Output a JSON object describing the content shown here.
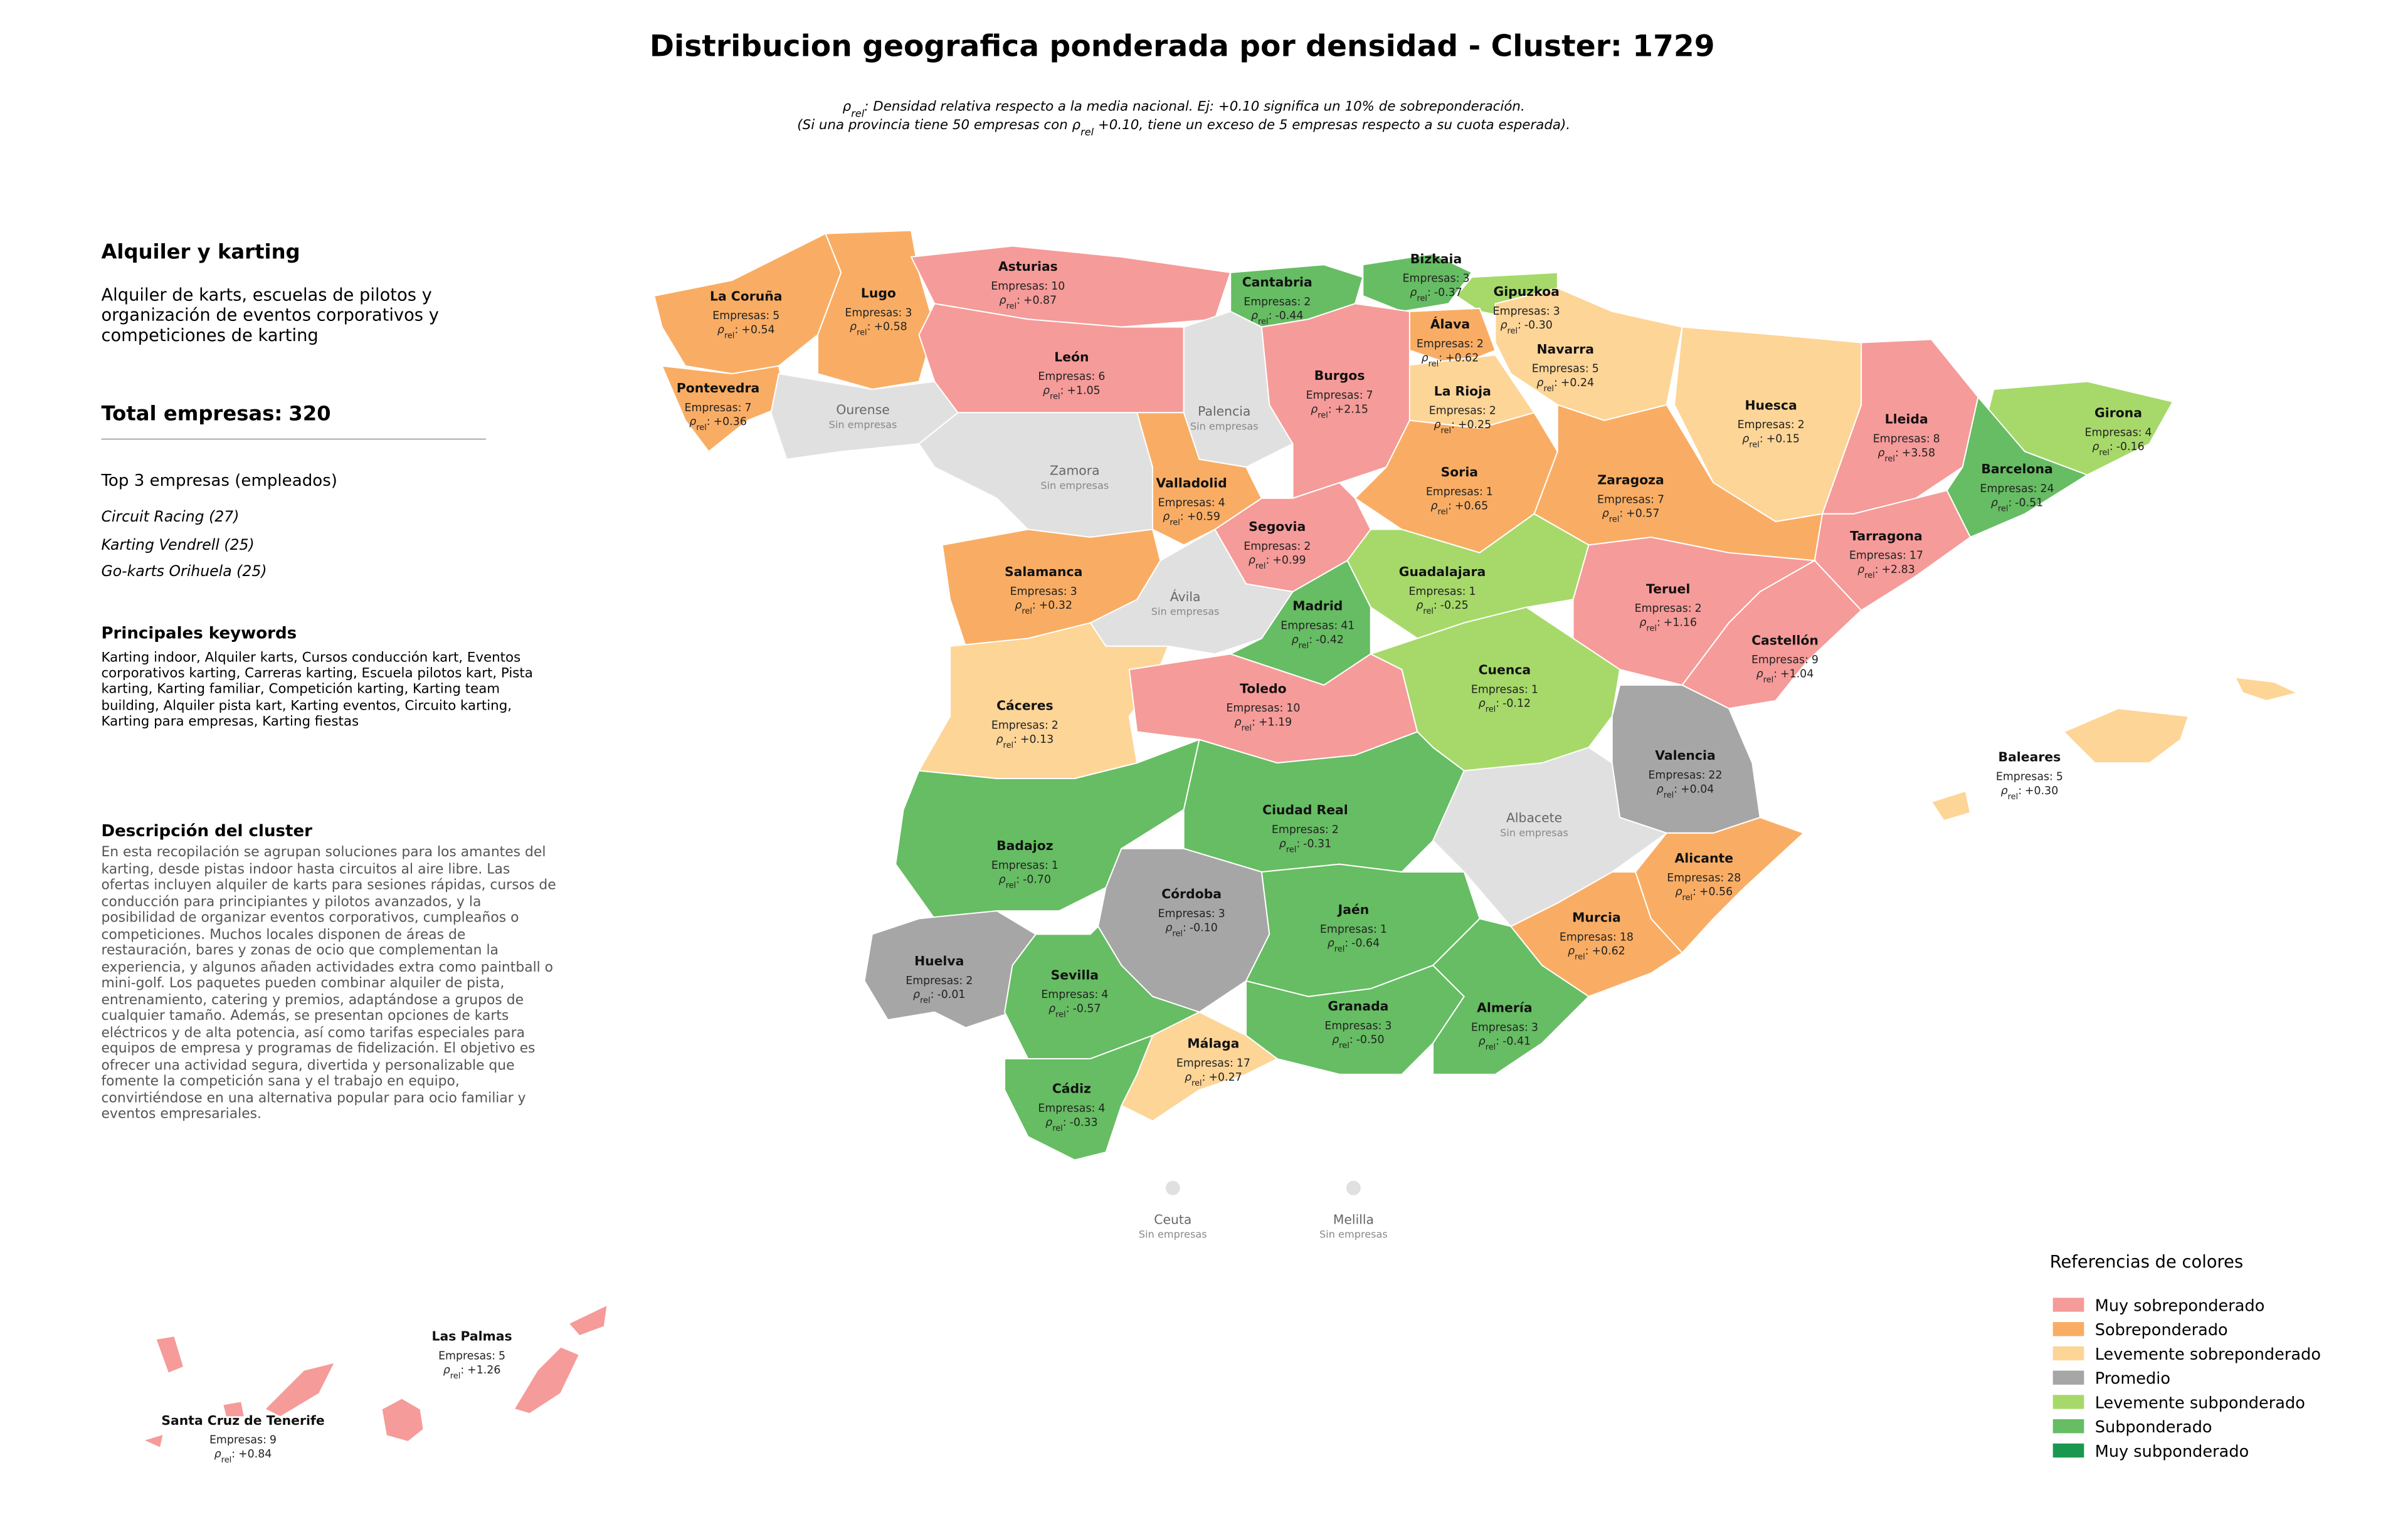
{
  "title": "Distribucion geografica ponderada por densidad - Cluster: 1729",
  "subtitle_lines": [
    [
      {
        "text": "ρ"
      },
      {
        "text": "rel",
        "subscript": true
      },
      {
        "text": ": Densidad relativa respecto a la media nacional. Ej: +0.10 significa un 10% de sobreponderación."
      }
    ],
    [
      {
        "text": "(Si una provincia tiene 50 empresas con "
      },
      {
        "text": "ρ"
      },
      {
        "text": "rel",
        "subscript": true
      },
      {
        "text": " +0.10, tiene un exceso de 5 empresas respecto a su cuota esperada)."
      }
    ]
  ],
  "sidebar": {
    "cluster_name": "Alquiler y karting",
    "cluster_description": "Alquiler de karts, escuelas de pilotos y organización de eventos corporativos y competiciones de karting",
    "total_label": "Total empresas:",
    "total": 320,
    "top_heading": "Top 3 empresas (empleados)",
    "top_companies": [
      "Circuit Racing (27)",
      "Karting Vendrell (25)",
      "Go-karts Orihuela (25)"
    ],
    "keywords_heading": "Principales keywords",
    "keywords": "Karting indoor, Alquiler karts, Cursos conducción kart, Eventos corporativos karting, Carreras karting, Escuela pilotos kart, Pista karting, Karting familiar, Competición karting, Karting team building, Alquiler pista kart, Karting eventos, Circuito karting, Karting para empresas, Karting fiestas",
    "description_heading": "Descripción del cluster",
    "description": "En esta recopilación se agrupan soluciones para los amantes del karting, desde pistas indoor hasta circuitos al aire libre. Las ofertas incluyen alquiler de karts para sesiones rápidas, cursos de conducción para principiantes y pilotos avanzados, y la posibilidad de organizar eventos corporativos, cumpleaños o competiciones. Muchos locales disponen de áreas de restauración, bares y zonas de ocio que complementan la experiencia, y algunos añaden actividades extra como paintball o mini-golf. Los paquetes pueden combinar alquiler de pista, entrenamiento, catering y premios, adaptándose a grupos de cualquier tamaño. Además, se presentan opciones de karts eléctricos y de alta potencia, así como tarifas especiales para equipos de empresa y programas de fidelización. El objetivo es ofrecer una actividad segura, divertida y personalizable que fomente la competición sana y el trabajo en equipo, convirtiéndose en una alternativa popular para ocio familiar y eventos empresariales."
  },
  "labels": {
    "empresas": "Empresas:",
    "rho": "ρ",
    "rho_sub": "rel",
    "rho_sep": ":",
    "no_data": "Sin empresas"
  },
  "provinces": [
    {
      "name": "La Coruña",
      "empresas": 5,
      "rho": 0.54,
      "rho_label": "+0.54",
      "color": "#f9ad64"
    },
    {
      "name": "Lugo",
      "empresas": 3,
      "rho": 0.58,
      "rho_label": "+0.58",
      "color": "#f9ad64"
    },
    {
      "name": "Asturias",
      "empresas": 10,
      "rho": 0.87,
      "rho_label": "+0.87",
      "color": "#f59b99"
    },
    {
      "name": "Cantabria",
      "empresas": 2,
      "rho": -0.44,
      "rho_label": "-0.44",
      "color": "#66bd63"
    },
    {
      "name": "Bizkaia",
      "empresas": 3,
      "rho": -0.37,
      "rho_label": "-0.37",
      "color": "#66bd63"
    },
    {
      "name": "Gipuzkoa",
      "empresas": 3,
      "rho": -0.3,
      "rho_label": "-0.30",
      "color": "#a6d96a"
    },
    {
      "name": "Álava",
      "empresas": 2,
      "rho": 0.62,
      "rho_label": "+0.62",
      "color": "#f9ad64"
    },
    {
      "name": "Navarra",
      "empresas": 5,
      "rho": 0.24,
      "rho_label": "+0.24",
      "color": "#fdd597"
    },
    {
      "name": "La Rioja",
      "empresas": 2,
      "rho": 0.25,
      "rho_label": "+0.25",
      "color": "#fdd597"
    },
    {
      "name": "Huesca",
      "empresas": 2,
      "rho": 0.15,
      "rho_label": "+0.15",
      "color": "#fdd597"
    },
    {
      "name": "Lleida",
      "empresas": 8,
      "rho": 3.58,
      "rho_label": "+3.58",
      "color": "#f59b99"
    },
    {
      "name": "Girona",
      "empresas": 4,
      "rho": -0.16,
      "rho_label": "-0.16",
      "color": "#a6d96a"
    },
    {
      "name": "Barcelona",
      "empresas": 24,
      "rho": -0.51,
      "rho_label": "-0.51",
      "color": "#66bd63"
    },
    {
      "name": "Tarragona",
      "empresas": 17,
      "rho": 2.83,
      "rho_label": "+2.83",
      "color": "#f59b99"
    },
    {
      "name": "Pontevedra",
      "empresas": 7,
      "rho": 0.36,
      "rho_label": "+0.36",
      "color": "#f9ad64"
    },
    {
      "name": "Ourense",
      "color": "#e0e0e0"
    },
    {
      "name": "León",
      "empresas": 6,
      "rho": 1.05,
      "rho_label": "+1.05",
      "color": "#f59b99"
    },
    {
      "name": "Palencia",
      "color": "#e0e0e0"
    },
    {
      "name": "Burgos",
      "empresas": 7,
      "rho": 2.15,
      "rho_label": "+2.15",
      "color": "#f59b99"
    },
    {
      "name": "Zamora",
      "color": "#e0e0e0"
    },
    {
      "name": "Valladolid",
      "empresas": 4,
      "rho": 0.59,
      "rho_label": "+0.59",
      "color": "#f9ad64"
    },
    {
      "name": "Soria",
      "empresas": 1,
      "rho": 0.65,
      "rho_label": "+0.65",
      "color": "#f9ad64"
    },
    {
      "name": "Zaragoza",
      "empresas": 7,
      "rho": 0.57,
      "rho_label": "+0.57",
      "color": "#f9ad64"
    },
    {
      "name": "Salamanca",
      "empresas": 3,
      "rho": 0.32,
      "rho_label": "+0.32",
      "color": "#f9ad64"
    },
    {
      "name": "Segovia",
      "empresas": 2,
      "rho": 0.99,
      "rho_label": "+0.99",
      "color": "#f59b99"
    },
    {
      "name": "Ávila",
      "color": "#e0e0e0"
    },
    {
      "name": "Guadalajara",
      "empresas": 1,
      "rho": -0.25,
      "rho_label": "-0.25",
      "color": "#a6d96a"
    },
    {
      "name": "Madrid",
      "empresas": 41,
      "rho": -0.42,
      "rho_label": "-0.42",
      "color": "#66bd63"
    },
    {
      "name": "Teruel",
      "empresas": 2,
      "rho": 1.16,
      "rho_label": "+1.16",
      "color": "#f59b99"
    },
    {
      "name": "Castellón",
      "empresas": 9,
      "rho": 1.04,
      "rho_label": "+1.04",
      "color": "#f59b99"
    },
    {
      "name": "Cáceres",
      "empresas": 2,
      "rho": 0.13,
      "rho_label": "+0.13",
      "color": "#fdd597"
    },
    {
      "name": "Toledo",
      "empresas": 10,
      "rho": 1.19,
      "rho_label": "+1.19",
      "color": "#f59b99"
    },
    {
      "name": "Cuenca",
      "empresas": 1,
      "rho": -0.12,
      "rho_label": "-0.12",
      "color": "#a6d96a"
    },
    {
      "name": "Valencia",
      "empresas": 22,
      "rho": 0.04,
      "rho_label": "+0.04",
      "color": "#a6a6a6"
    },
    {
      "name": "Badajoz",
      "empresas": 1,
      "rho": -0.7,
      "rho_label": "-0.70",
      "color": "#66bd63"
    },
    {
      "name": "Ciudad Real",
      "empresas": 2,
      "rho": -0.31,
      "rho_label": "-0.31",
      "color": "#66bd63"
    },
    {
      "name": "Albacete",
      "color": "#e0e0e0"
    },
    {
      "name": "Alicante",
      "empresas": 28,
      "rho": 0.56,
      "rho_label": "+0.56",
      "color": "#f9ad64"
    },
    {
      "name": "Huelva",
      "empresas": 2,
      "rho": -0.01,
      "rho_label": "-0.01",
      "color": "#a6a6a6"
    },
    {
      "name": "Córdoba",
      "empresas": 3,
      "rho": -0.1,
      "rho_label": "-0.10",
      "color": "#a6a6a6"
    },
    {
      "name": "Jaén",
      "empresas": 1,
      "rho": -0.64,
      "rho_label": "-0.64",
      "color": "#66bd63"
    },
    {
      "name": "Murcia",
      "empresas": 18,
      "rho": 0.62,
      "rho_label": "+0.62",
      "color": "#f9ad64"
    },
    {
      "name": "Sevilla",
      "empresas": 4,
      "rho": -0.57,
      "rho_label": "-0.57",
      "color": "#66bd63"
    },
    {
      "name": "Granada",
      "empresas": 3,
      "rho": -0.5,
      "rho_label": "-0.50",
      "color": "#66bd63"
    },
    {
      "name": "Almería",
      "empresas": 3,
      "rho": -0.41,
      "rho_label": "-0.41",
      "color": "#66bd63"
    },
    {
      "name": "Málaga",
      "empresas": 17,
      "rho": 0.27,
      "rho_label": "+0.27",
      "color": "#fdd597"
    },
    {
      "name": "Cádiz",
      "empresas": 4,
      "rho": -0.33,
      "rho_label": "-0.33",
      "color": "#66bd63"
    },
    {
      "name": "Baleares",
      "empresas": 5,
      "rho": 0.3,
      "rho_label": "+0.30",
      "color": "#fdd597"
    },
    {
      "name": "Las Palmas",
      "empresas": 5,
      "rho": 1.26,
      "rho_label": "+1.26",
      "color": "#f59b99"
    },
    {
      "name": "Santa Cruz de Tenerife",
      "empresas": 9,
      "rho": 0.84,
      "rho_label": "+0.84",
      "color": "#f59b99"
    },
    {
      "name": "Ceuta",
      "color": "#e0e0e0"
    },
    {
      "name": "Melilla",
      "color": "#e0e0e0"
    }
  ],
  "legend": {
    "title": "Referencias de colores",
    "items": [
      {
        "label": "Muy sobreponderado",
        "color": "#f59b99"
      },
      {
        "label": "Sobreponderado",
        "color": "#f9ad64"
      },
      {
        "label": "Levemente sobreponderado",
        "color": "#fdd597"
      },
      {
        "label": "Promedio",
        "color": "#a6a6a6"
      },
      {
        "label": "Levemente subponderado",
        "color": "#a6d96a"
      },
      {
        "label": "Subponderado",
        "color": "#66bd63"
      },
      {
        "label": "Muy subponderado",
        "color": "#1a9850"
      }
    ]
  }
}
